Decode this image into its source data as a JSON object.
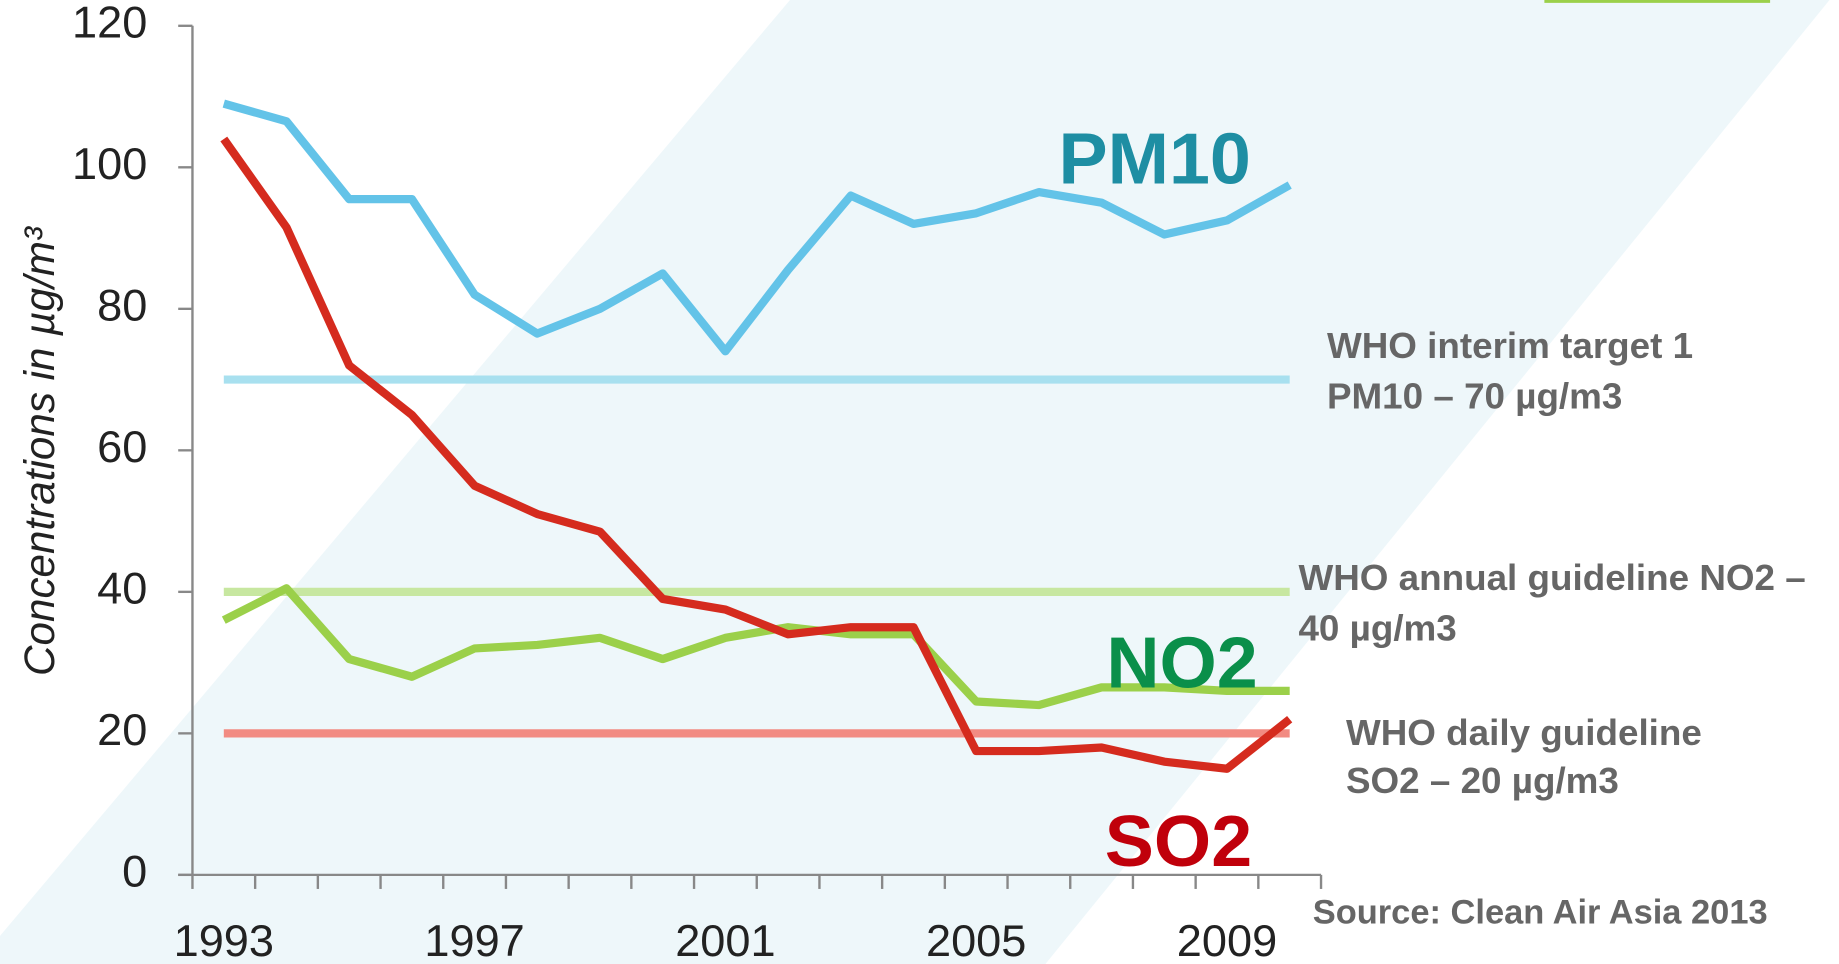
{
  "chart_data": {
    "type": "line",
    "y_label": "Concentrations in µg/m³",
    "categories": [
      "1993",
      null,
      null,
      null,
      "1997",
      null,
      null,
      null,
      "2001",
      null,
      null,
      null,
      "2005",
      null,
      null,
      null,
      "2009",
      null
    ],
    "ylim": [
      0,
      120
    ],
    "yticks": [
      0,
      20,
      40,
      60,
      80,
      100,
      120
    ],
    "series": [
      {
        "name": "PM10",
        "color": "#63c3e8",
        "label_color": "#1e8ea3",
        "values": [
          109,
          106.5,
          95.5,
          95.5,
          82,
          76.5,
          80,
          85,
          74,
          85.5,
          96,
          92,
          93.5,
          96.5,
          95,
          90.5,
          92.5,
          97.5
        ]
      },
      {
        "name": "NO2",
        "color": "#9bd04a",
        "label_color": "#0a8f4a",
        "values": [
          36,
          40.5,
          30.5,
          28,
          32,
          32.5,
          33.5,
          30.5,
          33.5,
          35,
          34,
          34,
          24.5,
          24,
          26.5,
          26.5,
          26,
          26
        ]
      },
      {
        "name": "SO2",
        "color": "#d52b1e",
        "label_color": "#c0000b",
        "values": [
          104,
          91.5,
          72,
          65,
          55,
          51,
          48.5,
          39,
          37.5,
          34,
          35,
          35,
          17.5,
          17.5,
          18,
          16,
          15,
          22
        ]
      }
    ],
    "reference_lines": [
      {
        "value": 70,
        "color": "#a8e0ef",
        "label": [
          "WHO interim target 1",
          "PM10 – 70 µg/m3"
        ]
      },
      {
        "value": 40,
        "color": "#c7e7a0",
        "label": [
          "WHO annual guideline NO2 –",
          "40 µg/m3"
        ]
      },
      {
        "value": 20,
        "color": "#f28b82",
        "label": [
          "WHO daily guideline",
          "SO2 – 20 µg/m3"
        ]
      }
    ],
    "source": "Source: Clean Air Asia  2013"
  }
}
